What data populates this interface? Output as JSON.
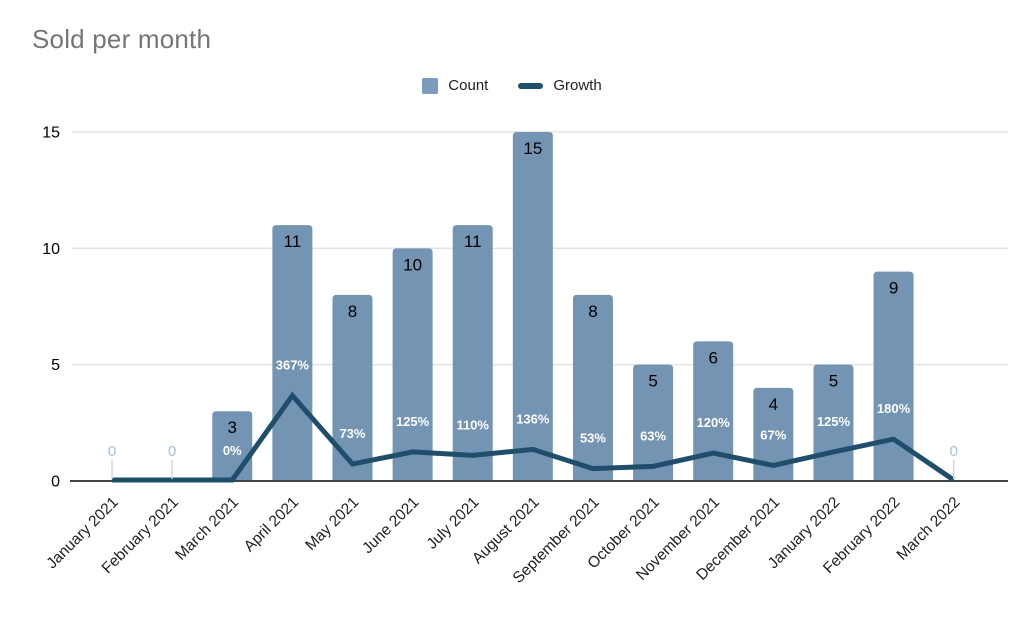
{
  "title": "Sold per month",
  "legend": {
    "count_label": "Count",
    "growth_label": "Growth"
  },
  "colors": {
    "bar": "#7494b3",
    "bar_legend": "#7d9cbb",
    "line": "#1f4e6b",
    "title_text": "#757575",
    "count_label": "#000000",
    "pct_label": "#ffffff",
    "zero_label": "#a3c2dc",
    "zero_stem": "#ccdae7",
    "grid": "#e3e3e3",
    "axis": "#424242",
    "tick_text": "#000000",
    "category_text": "#212121"
  },
  "chart_data": {
    "type": "bar",
    "title": "Sold per month",
    "categories": [
      "January 2021",
      "February 2021",
      "March 2021",
      "April 2021",
      "May 2021",
      "June 2021",
      "July 2021",
      "August 2021",
      "September 2021",
      "October 2021",
      "November 2021",
      "December 2021",
      "January 2022",
      "February 2022",
      "March 2022"
    ],
    "series": [
      {
        "name": "Count",
        "type": "bar",
        "values": [
          0,
          0,
          3,
          11,
          8,
          10,
          11,
          15,
          8,
          5,
          6,
          4,
          5,
          9,
          0
        ],
        "data_labels": [
          "0",
          "0",
          "3",
          "11",
          "8",
          "10",
          "11",
          "15",
          "8",
          "5",
          "6",
          "4",
          "5",
          "9",
          "0"
        ]
      },
      {
        "name": "Growth",
        "type": "line",
        "unit": "percent",
        "values": [
          0,
          0,
          0,
          367,
          73,
          125,
          110,
          136,
          53,
          63,
          120,
          67,
          125,
          180,
          0
        ],
        "data_labels": [
          "",
          "",
          "0%",
          "367%",
          "73%",
          "125%",
          "110%",
          "136%",
          "53%",
          "63%",
          "120%",
          "67%",
          "125%",
          "180%",
          ""
        ]
      }
    ],
    "xlabel": "",
    "ylabel": "",
    "y_ticks": [
      0,
      5,
      10,
      15
    ],
    "ylim": [
      0,
      15
    ],
    "growth_scale_pct_per_unit": 100,
    "legend_position": "top",
    "grid": true
  }
}
